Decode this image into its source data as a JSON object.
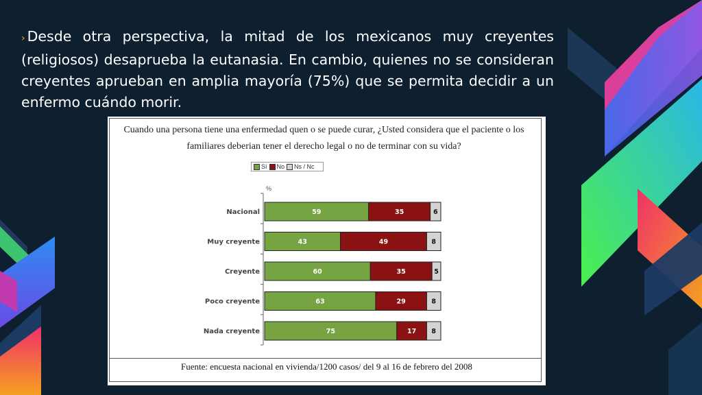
{
  "slide": {
    "bullet": "›",
    "text": "Desde otra perspectiva, la mitad de los mexicanos muy creyentes (religiosos) desaprueba la eutanasia. En cambio, quienes no se consideran creyentes aprueban en amplia mayoría (75%) que se permita decidir a un enfermo cuándo morir.",
    "colors": {
      "background": "#0e1f2f",
      "accent_orange": "#f0a13a",
      "accent_pink": "#e8318a",
      "accent_blue": "#4a7cf0",
      "accent_green": "#3bd67a"
    }
  },
  "figure": {
    "title": "Cuando una persona tiene una enfermedad quen o se puede curar, ¿Usted considera que el paciente o los familiares deberian tener el derecho legal o no de terminar con su vida?",
    "source": "Fuente: encuesta nacional en vivienda/1200 casos/ del 9 al 16 de febrero del 2008"
  },
  "chart_data": {
    "type": "bar",
    "orientation": "horizontal",
    "stacked": true,
    "unit_label": "%",
    "categories": [
      "Nacional",
      "Muy creyente",
      "Creyente",
      "Poco creyente",
      "Nada creyente"
    ],
    "series": [
      {
        "name": "Sí",
        "color": "#76a442",
        "values": [
          59,
          43,
          60,
          63,
          75
        ]
      },
      {
        "name": "No",
        "color": "#8b1212",
        "values": [
          35,
          49,
          35,
          29,
          17
        ]
      },
      {
        "name": "Ns / Nc",
        "color": "#d3d3d3",
        "values": [
          6,
          8,
          5,
          8,
          8
        ]
      }
    ],
    "xlim": [
      0,
      100
    ],
    "legend_position": "top"
  }
}
